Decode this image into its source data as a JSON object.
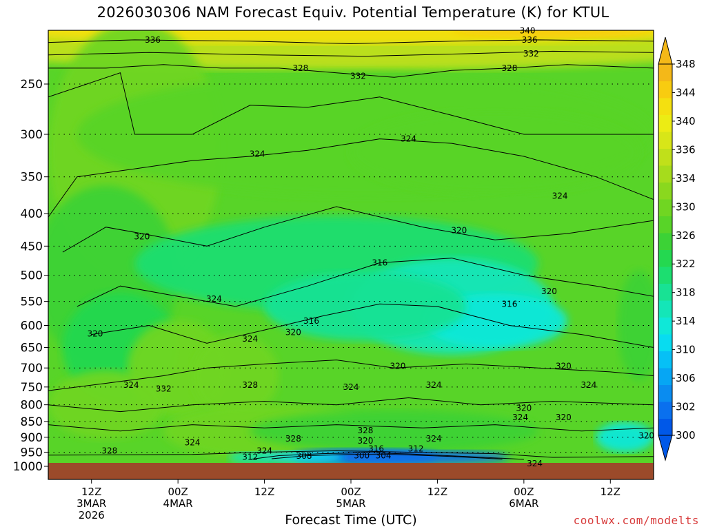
{
  "chart_data": {
    "type": "heatmap",
    "title": "2026030306 NAM Forecast Equiv. Potential Temperature (K) for KTUL",
    "xlabel": "Forecast Time (UTC)",
    "ylabel": "",
    "y_scale": "log-pressure",
    "y_ticks": [
      "250",
      "300",
      "350",
      "400",
      "450",
      "500",
      "550",
      "600",
      "650",
      "700",
      "750",
      "800",
      "850",
      "900",
      "950",
      "1000"
    ],
    "y_tick_values": [
      250,
      300,
      350,
      400,
      450,
      500,
      550,
      600,
      650,
      700,
      750,
      800,
      850,
      900,
      950,
      1000
    ],
    "x_ticks": [
      {
        "hours": 6,
        "l1": "12Z",
        "l2": "3MAR",
        "l3": "2026"
      },
      {
        "hours": 18,
        "l1": "00Z",
        "l2": "4MAR",
        "l3": ""
      },
      {
        "hours": 30,
        "l1": "12Z",
        "l2": "",
        "l3": ""
      },
      {
        "hours": 42,
        "l1": "00Z",
        "l2": "5MAR",
        "l3": ""
      },
      {
        "hours": 54,
        "l1": "12Z",
        "l2": "",
        "l3": ""
      },
      {
        "hours": 66,
        "l1": "00Z",
        "l2": "6MAR",
        "l3": ""
      },
      {
        "hours": 78,
        "l1": "12Z",
        "l2": "",
        "l3": ""
      }
    ],
    "x_range_hours": [
      0,
      84
    ],
    "y_range_hpa": [
      200,
      1000
    ],
    "colorbar": {
      "ticks": [
        "348",
        "344",
        "340",
        "336",
        "334",
        "330",
        "326",
        "322",
        "318",
        "314",
        "310",
        "306",
        "302",
        "300"
      ],
      "levels": [
        300,
        302,
        304,
        306,
        308,
        310,
        312,
        314,
        316,
        318,
        320,
        322,
        324,
        326,
        328,
        330,
        332,
        334,
        336,
        338,
        340,
        344,
        348
      ],
      "colors": [
        "#0058e8",
        "#0a70ee",
        "#0a8cf0",
        "#06a6f4",
        "#06c0f6",
        "#08dcf0",
        "#0fe8d8",
        "#14e6b8",
        "#18e294",
        "#1cde70",
        "#24d850",
        "#3cd236",
        "#58d428",
        "#70d622",
        "#8ad81e",
        "#a6dc1c",
        "#c0e01a",
        "#d8e618",
        "#ecec14",
        "#f4e010",
        "#f8cc10",
        "#f4b818"
      ]
    },
    "contour_labels": [
      {
        "text": "336",
        "t": 14.5,
        "p": 213
      },
      {
        "text": "340",
        "t": 66.5,
        "p": 206
      },
      {
        "text": "336",
        "t": 66.8,
        "p": 213
      },
      {
        "text": "332",
        "t": 67.0,
        "p": 224
      },
      {
        "text": "328",
        "t": 35.0,
        "p": 236
      },
      {
        "text": "332",
        "t": 43.0,
        "p": 243
      },
      {
        "text": "328",
        "t": 64.0,
        "p": 236
      },
      {
        "text": "324",
        "t": 29.0,
        "p": 322
      },
      {
        "text": "324",
        "t": 50.0,
        "p": 305
      },
      {
        "text": "324",
        "t": 71.0,
        "p": 375
      },
      {
        "text": "320",
        "t": 57.0,
        "p": 425
      },
      {
        "text": "320",
        "t": 13.0,
        "p": 435
      },
      {
        "text": "316",
        "t": 46.0,
        "p": 478
      },
      {
        "text": "324",
        "t": 23.0,
        "p": 545
      },
      {
        "text": "316",
        "t": 64.0,
        "p": 555
      },
      {
        "text": "320",
        "t": 69.5,
        "p": 530
      },
      {
        "text": "316",
        "t": 36.5,
        "p": 590
      },
      {
        "text": "320",
        "t": 34.0,
        "p": 615
      },
      {
        "text": "320",
        "t": 6.5,
        "p": 618
      },
      {
        "text": "324",
        "t": 28.0,
        "p": 630
      },
      {
        "text": "320",
        "t": 48.5,
        "p": 695
      },
      {
        "text": "320",
        "t": 71.5,
        "p": 695
      },
      {
        "text": "324",
        "t": 11.5,
        "p": 745
      },
      {
        "text": "332",
        "t": 16.0,
        "p": 755
      },
      {
        "text": "328",
        "t": 28.0,
        "p": 745
      },
      {
        "text": "324",
        "t": 42.0,
        "p": 750
      },
      {
        "text": "324",
        "t": 53.5,
        "p": 745
      },
      {
        "text": "324",
        "t": 75.0,
        "p": 745
      },
      {
        "text": "320",
        "t": 66.0,
        "p": 810
      },
      {
        "text": "324",
        "t": 65.5,
        "p": 838
      },
      {
        "text": "320",
        "t": 71.5,
        "p": 838
      },
      {
        "text": "328",
        "t": 44.0,
        "p": 878
      },
      {
        "text": "328",
        "t": 34.0,
        "p": 905
      },
      {
        "text": "324",
        "t": 53.5,
        "p": 905
      },
      {
        "text": "320",
        "t": 44.0,
        "p": 912
      },
      {
        "text": "324",
        "t": 20.0,
        "p": 918
      },
      {
        "text": "316",
        "t": 45.5,
        "p": 938
      },
      {
        "text": "312",
        "t": 51.0,
        "p": 938
      },
      {
        "text": "328",
        "t": 8.5,
        "p": 945
      },
      {
        "text": "324",
        "t": 30.0,
        "p": 945
      },
      {
        "text": "308",
        "t": 35.5,
        "p": 963
      },
      {
        "text": "300",
        "t": 43.5,
        "p": 962
      },
      {
        "text": "304",
        "t": 46.5,
        "p": 962
      },
      {
        "text": "312",
        "t": 28.0,
        "p": 967
      },
      {
        "text": "320",
        "t": 83.0,
        "p": 895
      },
      {
        "text": "324",
        "t": 67.5,
        "p": 990
      }
    ]
  },
  "credit": "coolwx.com/modelts",
  "colors": {
    "ground": "#9b4a2a",
    "frame": "#000000",
    "credit": "#d83c3c"
  }
}
